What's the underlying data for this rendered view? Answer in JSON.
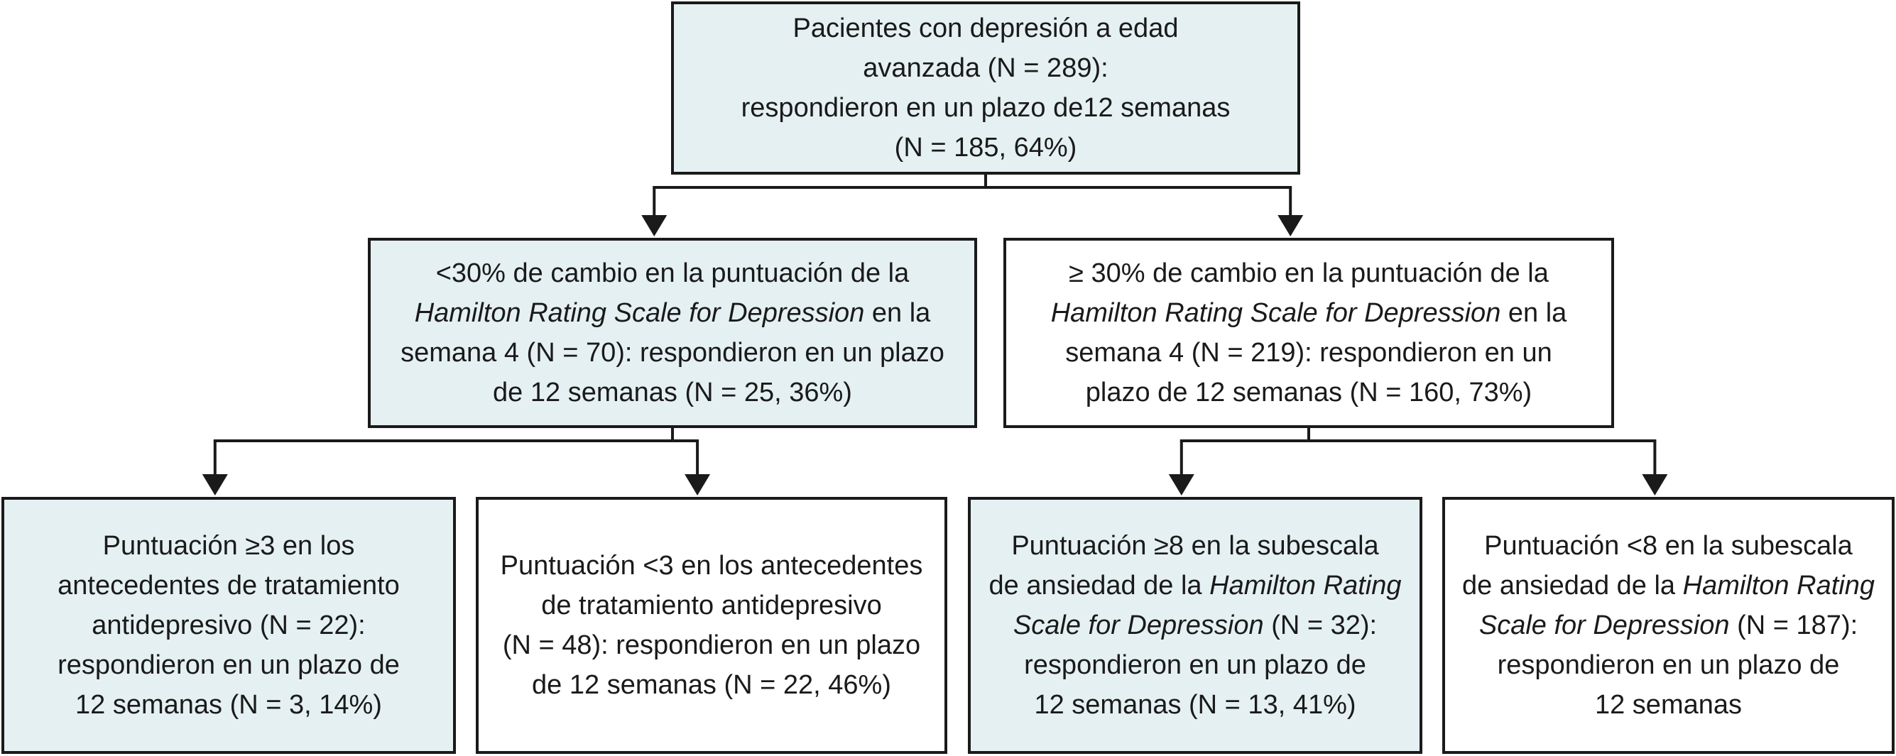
{
  "nodes": {
    "root": {
      "shaded": true,
      "lines": [
        [
          "Pacientes con depresión a edad"
        ],
        [
          "avanzada (N = 289):"
        ],
        [
          "respondieron en un plazo de12 semanas"
        ],
        [
          "(N = 185, 64%)"
        ]
      ]
    },
    "left_mid": {
      "shaded": true,
      "lines": [
        [
          "<30% de cambio en la puntuación de la"
        ],
        [
          {
            "t": "Hamilton Rating Scale for Depression",
            "i": true
          },
          " en la"
        ],
        [
          "semana 4 (N = 70): respondieron en un plazo"
        ],
        [
          "de 12 semanas (N = 25, 36%)"
        ]
      ]
    },
    "right_mid": {
      "shaded": false,
      "lines": [
        [
          "≥ 30% de cambio en la puntuación de la"
        ],
        [
          {
            "t": "Hamilton Rating Scale for Depression",
            "i": true
          },
          " en la"
        ],
        [
          "semana 4 (N = 219): respondieron en un"
        ],
        [
          "plazo de 12 semanas (N = 160, 73%)"
        ]
      ]
    },
    "leaf1": {
      "shaded": true,
      "lines": [
        [
          "Puntuación ≥3 en los"
        ],
        [
          "antecedentes de tratamiento"
        ],
        [
          "antidepresivo (N = 22):"
        ],
        [
          "respondieron en un plazo de"
        ],
        [
          "12 semanas (N = 3, 14%)"
        ]
      ]
    },
    "leaf2": {
      "shaded": false,
      "lines": [
        [
          "Puntuación <3 en los antecedentes"
        ],
        [
          "de tratamiento antidepresivo"
        ],
        [
          "(N = 48): respondieron en un plazo"
        ],
        [
          "de 12 semanas (N = 22, 46%)"
        ]
      ]
    },
    "leaf3": {
      "shaded": true,
      "lines": [
        [
          "Puntuación ≥8 en la subescala"
        ],
        [
          "de ansiedad de la ",
          {
            "t": "Hamilton Rating",
            "i": true
          }
        ],
        [
          {
            "t": "Scale for Depression",
            "i": true
          },
          " (N = 32):"
        ],
        [
          "respondieron en un plazo de"
        ],
        [
          "12 semanas (N = 13, 41%)"
        ]
      ]
    },
    "leaf4": {
      "shaded": false,
      "lines": [
        [
          "Puntuación <8 en la subescala"
        ],
        [
          "de ansiedad de la ",
          {
            "t": "Hamilton Rating",
            "i": true
          }
        ],
        [
          {
            "t": "Scale for Depression",
            "i": true
          },
          " (N = 187):"
        ],
        [
          "respondieron en un plazo de"
        ],
        [
          "12 semanas"
        ]
      ]
    }
  },
  "edges": [
    {
      "from": "root",
      "to": "left_mid"
    },
    {
      "from": "root",
      "to": "right_mid"
    },
    {
      "from": "left_mid",
      "to": "leaf1"
    },
    {
      "from": "left_mid",
      "to": "leaf2"
    },
    {
      "from": "right_mid",
      "to": "leaf3"
    },
    {
      "from": "right_mid",
      "to": "leaf4"
    }
  ],
  "colors": {
    "shaded_fill": "#e5f0f2",
    "stroke": "#1a1a1a"
  }
}
